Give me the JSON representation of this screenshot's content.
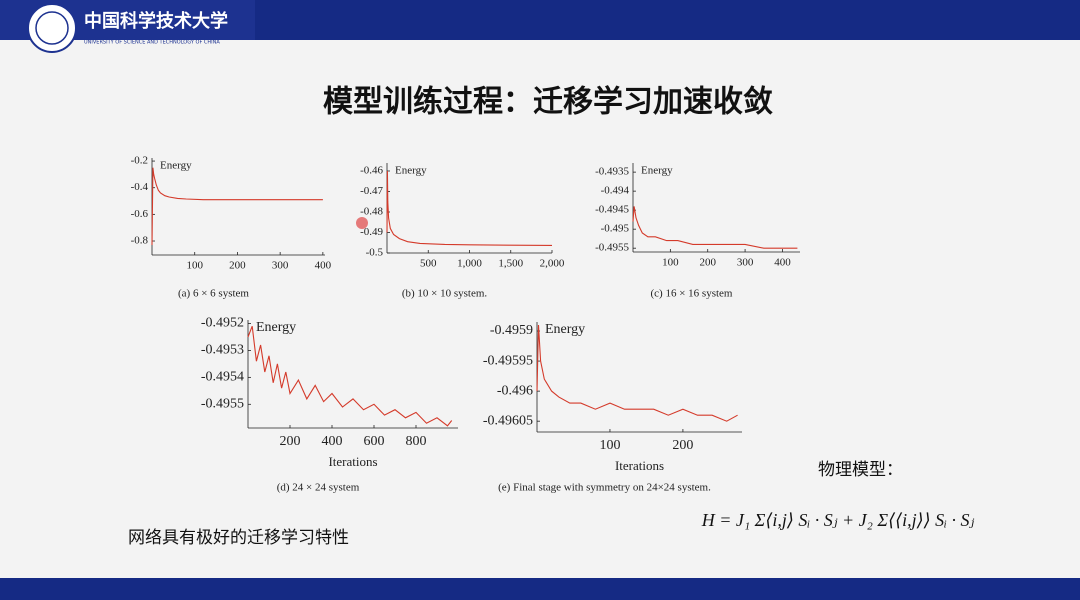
{
  "header": {
    "school": "中国科学技术大学",
    "school_en": "UNIVERSITY OF SCIENCE AND TECHNOLOGY OF CHINA"
  },
  "title": "模型训练过程：迁移学习加速收敛",
  "chart_data": [
    {
      "type": "line",
      "ylabel": "Energy",
      "caption": "(a) 6 × 6 system",
      "color": "#d43a2a",
      "x": [
        0,
        2,
        4,
        6,
        10,
        15,
        20,
        30,
        40,
        60,
        80,
        120,
        200,
        300,
        400
      ],
      "values": [
        -0.83,
        -0.25,
        -0.3,
        -0.33,
        -0.38,
        -0.42,
        -0.44,
        -0.46,
        -0.47,
        -0.48,
        -0.485,
        -0.49,
        -0.49,
        -0.49,
        -0.49
      ],
      "xlim": [
        0,
        405
      ],
      "ylim": [
        -0.905,
        -0.177
      ],
      "xticks": [
        100,
        200,
        300,
        400
      ],
      "yticks": [
        -0.2,
        -0.4,
        -0.6,
        -0.8
      ]
    },
    {
      "type": "line",
      "ylabel": "Energy",
      "caption": "(b) 10 × 10 system.",
      "color": "#d43a2a",
      "x": [
        0,
        5,
        10,
        20,
        40,
        80,
        150,
        250,
        400,
        700,
        1000,
        1500,
        2000
      ],
      "values": [
        -0.49,
        -0.46,
        -0.475,
        -0.483,
        -0.488,
        -0.491,
        -0.493,
        -0.4945,
        -0.4953,
        -0.4958,
        -0.496,
        -0.4962,
        -0.4963
      ],
      "xlim": [
        0,
        2000
      ],
      "ylim": [
        -0.5,
        -0.4561
      ],
      "xticks": [
        500,
        {
          "value": 1000,
          "label": "1,000"
        },
        {
          "value": 1500,
          "label": "1,500"
        },
        {
          "value": 2000,
          "label": "2,000"
        }
      ],
      "yticks": [
        -0.46,
        -0.47,
        -0.48,
        -0.49,
        -0.5
      ]
    },
    {
      "type": "line",
      "ylabel": "Energy",
      "caption": "(c) 16 × 16 system",
      "color": "#d43a2a",
      "x": [
        0,
        3,
        8,
        15,
        25,
        40,
        60,
        90,
        120,
        160,
        200,
        250,
        300,
        350,
        400,
        440
      ],
      "values": [
        -0.4948,
        -0.4944,
        -0.4947,
        -0.4949,
        -0.4951,
        -0.4952,
        -0.4952,
        -0.4953,
        -0.4953,
        -0.4954,
        -0.4954,
        -0.4954,
        -0.4954,
        -0.4955,
        -0.4955,
        -0.4955
      ],
      "xlim": [
        0,
        447
      ],
      "ylim": [
        -0.4956,
        -0.49326
      ],
      "xticks": [
        100,
        200,
        300,
        400
      ],
      "yticks": [
        -0.4935,
        -0.494,
        -0.4945,
        -0.495,
        -0.4955
      ]
    },
    {
      "type": "line",
      "ylabel": "Energy",
      "xlabel": "Iterations",
      "caption": "(d) 24 × 24 system",
      "color": "#d43a2a",
      "x": [
        0,
        20,
        40,
        60,
        80,
        100,
        120,
        140,
        160,
        180,
        200,
        240,
        280,
        320,
        360,
        400,
        450,
        500,
        550,
        600,
        650,
        700,
        750,
        800,
        850,
        900,
        950,
        970
      ],
      "values": [
        -0.49525,
        -0.49521,
        -0.49534,
        -0.49528,
        -0.49538,
        -0.49532,
        -0.49542,
        -0.49535,
        -0.49544,
        -0.49538,
        -0.49546,
        -0.49541,
        -0.49548,
        -0.49543,
        -0.49549,
        -0.49546,
        -0.49551,
        -0.49548,
        -0.49552,
        -0.4955,
        -0.49554,
        -0.49552,
        -0.49555,
        -0.49553,
        -0.49557,
        -0.49555,
        -0.49558,
        -0.49556
      ],
      "xlim": [
        0,
        1000
      ],
      "ylim": [
        -0.495588,
        -0.495187
      ],
      "xticks": [
        200,
        400,
        600,
        800
      ],
      "yticks": [
        -0.4952,
        -0.4953,
        -0.4954,
        -0.4955
      ]
    },
    {
      "type": "line",
      "ylabel": "Energy",
      "xlabel": "Iterations",
      "caption": "(e) Final stage with symmetry on 24×24 system.",
      "color": "#d43a2a",
      "x": [
        0,
        2,
        5,
        10,
        20,
        30,
        45,
        60,
        80,
        100,
        120,
        140,
        160,
        180,
        200,
        220,
        240,
        260,
        275
      ],
      "values": [
        -0.496,
        -0.49589,
        -0.49595,
        -0.49598,
        -0.496,
        -0.49601,
        -0.49602,
        -0.49602,
        -0.49603,
        -0.49602,
        -0.49603,
        -0.49603,
        -0.49603,
        -0.49604,
        -0.49603,
        -0.49604,
        -0.49604,
        -0.49605,
        -0.49604
      ],
      "xlim": [
        0,
        281
      ],
      "ylim": [
        -0.496068,
        -0.495885
      ],
      "xticks": [
        100,
        200
      ],
      "yticks": [
        -0.4959,
        -0.49595,
        -0.496,
        -0.49605
      ]
    }
  ],
  "notes": "网络具有极好的迁移学习特性",
  "model_label": "物理模型：",
  "formula": "H = J₁ Σ⟨i,j⟩ Sᵢ · Sⱼ + J₂ Σ⟨⟨i,j⟩⟩ Sᵢ · Sⱼ"
}
